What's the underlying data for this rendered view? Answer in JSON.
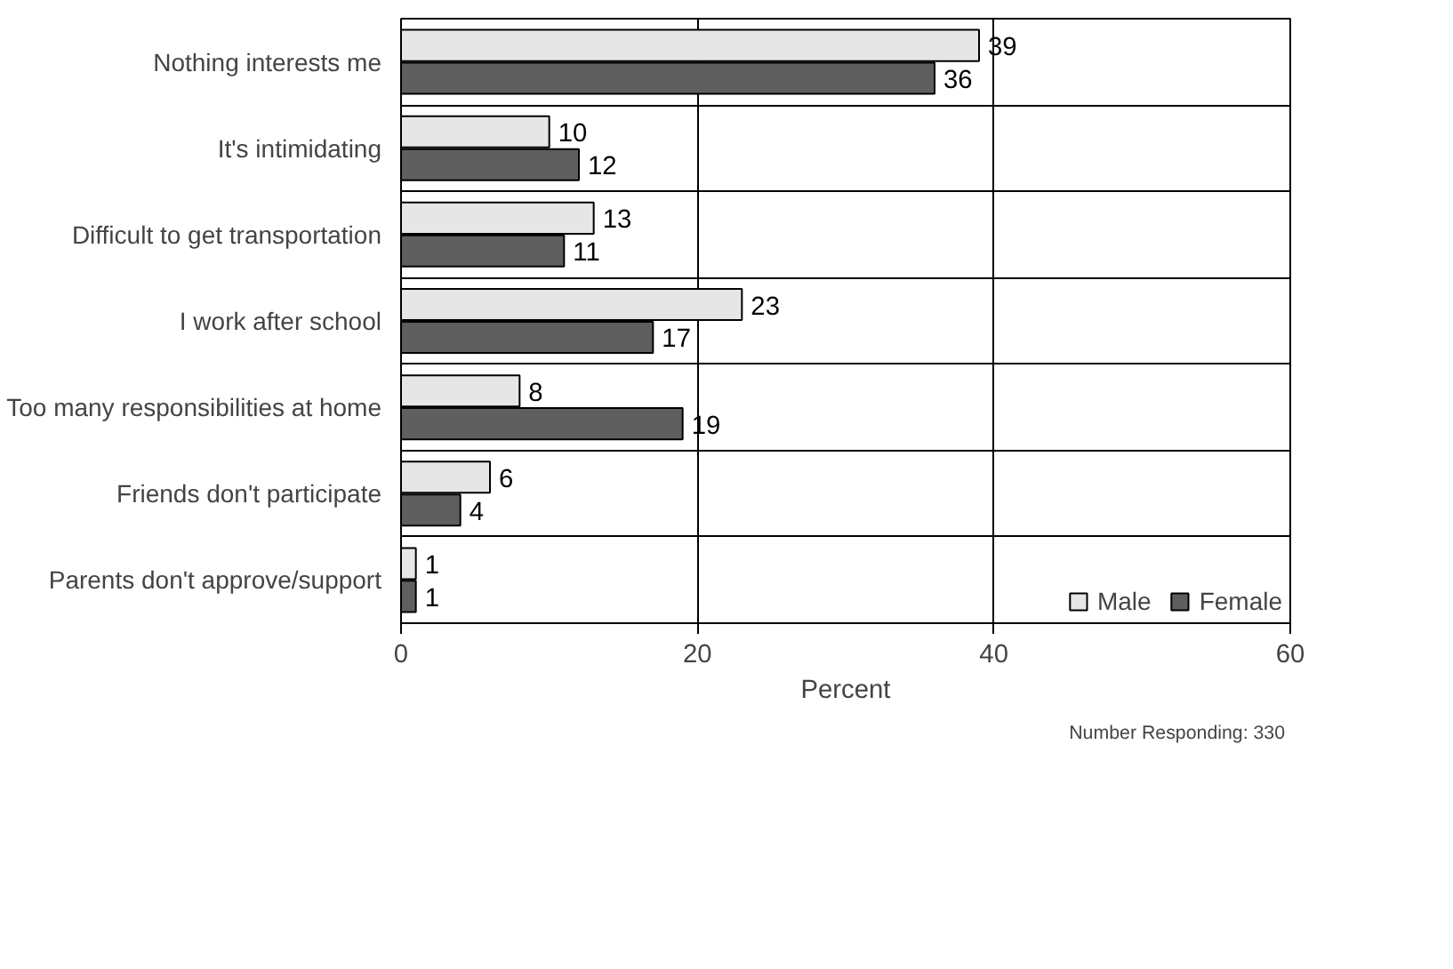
{
  "chart_data": {
    "type": "bar",
    "orientation": "horizontal",
    "categories": [
      "Nothing interests me",
      "It's intimidating",
      "Difficult to get transportation",
      "I work after school",
      "Too many responsibilities at home",
      "Friends don't participate",
      "Parents don't approve/support"
    ],
    "series": [
      {
        "name": "Male",
        "color": "#e6e6e6",
        "values": [
          39,
          10,
          13,
          23,
          8,
          6,
          1
        ]
      },
      {
        "name": "Female",
        "color": "#5f5f5f",
        "values": [
          36,
          12,
          11,
          17,
          19,
          4,
          1
        ]
      }
    ],
    "xlabel": "Percent",
    "xlim": [
      0,
      60
    ],
    "xticks": [
      0,
      20,
      40,
      60
    ],
    "grid": true,
    "legend": "bottom right",
    "data_labels": true,
    "annotations": [
      "Number Responding:  330"
    ]
  }
}
